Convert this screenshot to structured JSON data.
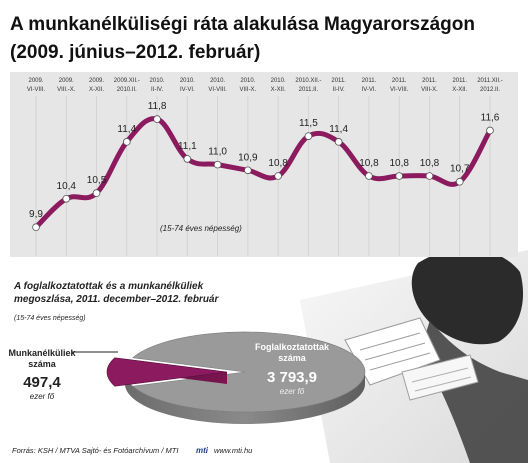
{
  "title": {
    "line1": "A munkanélküliségi ráta alakulása Magyarországon",
    "line2": "(2009. június–2012. február)"
  },
  "chart_data": [
    {
      "type": "line",
      "title": "A munkanélküliségi ráta alakulása Magyarországon (2009. június–2012. február)",
      "note": "(15-74 éves népesség)",
      "categories": [
        [
          "2009.",
          "VI-VIII."
        ],
        [
          "2009.",
          "VIII.-X."
        ],
        [
          "2009.",
          "X-XII."
        ],
        [
          "2009.XII.-",
          "2010.II."
        ],
        [
          "2010.",
          "II-IV."
        ],
        [
          "2010.",
          "IV-VI."
        ],
        [
          "2010.",
          "VI-VIII."
        ],
        [
          "2010.",
          "VIII-X."
        ],
        [
          "2010.",
          "X-XII."
        ],
        [
          "2010.XII.-",
          "2011.II."
        ],
        [
          "2011.",
          "II-IV."
        ],
        [
          "2011.",
          "IV-VI."
        ],
        [
          "2011.",
          "VI-VIII."
        ],
        [
          "2011.",
          "VIII-X."
        ],
        [
          "2011.",
          "X-XII."
        ],
        [
          "2011.XII.-",
          "2012.II."
        ]
      ],
      "series": [
        {
          "values": [
            9.9,
            10.4,
            10.5,
            11.4,
            11.8,
            11.1,
            11.0,
            10.9,
            10.8,
            11.5,
            11.4,
            10.8,
            10.8,
            10.8,
            10.7,
            11.6
          ],
          "labels": [
            "9,9",
            "10,4",
            "10,5",
            "11,4",
            "11,8",
            "11,1",
            "11,0",
            "10,9",
            "10,8",
            "11,5",
            "11,4",
            "10,8",
            "10,8",
            "10,8",
            "10,7",
            "11,6"
          ],
          "color": "#8b1a5e"
        }
      ],
      "ylim": [
        9.5,
        12.1
      ],
      "grid": true
    },
    {
      "type": "pie",
      "title": "A foglalkoztatottak és a munkanélküliek megoszlása, 2011. december–2012. február",
      "note": "(15-74 éves népesség)",
      "slices": [
        {
          "label": "Munkanélküliek száma",
          "value": 497.4,
          "value_text": "497,4",
          "unit": "ezer fő",
          "color": "#8b1a5e"
        },
        {
          "label": "Foglalkoztatottak száma",
          "value": 3793.9,
          "value_text": "3 793,9",
          "unit": "ezer fő",
          "color": "#9a9a9a"
        }
      ]
    }
  ],
  "footer": {
    "source": "Forrás: KSH / MTVA Sajtó- és Fotóarchívum / MTI",
    "logo": "mti",
    "url": "www.mti.hu"
  },
  "colors": {
    "line": "#8b1a5e",
    "panel": "#e6e6e6",
    "grid": "#cfcfcf",
    "pie_gray": "#9a9a9a"
  }
}
